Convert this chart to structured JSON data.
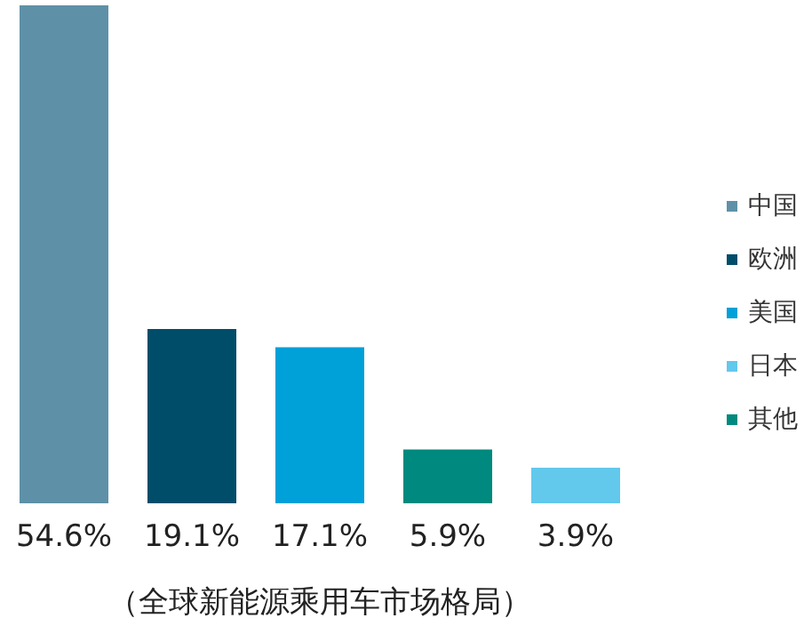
{
  "chart_data": {
    "type": "bar",
    "xlabel": "（全球新能源乘用车市场格局）",
    "categories": [
      null,
      null,
      null,
      null,
      null
    ],
    "stacked": true,
    "legend": "right",
    "data_labels": true,
    "series": [
      {
        "name": "中国",
        "color": "#5e91a8",
        "values": [
          54.6,
          null,
          null,
          null,
          null
        ],
        "value_labels": [
          "54.6%",
          null,
          null,
          null,
          null
        ]
      },
      {
        "name": "欧洲",
        "color": "#004d6a",
        "values": [
          null,
          19.1,
          null,
          null,
          null
        ],
        "value_labels": [
          null,
          "19.1%",
          null,
          null,
          null
        ]
      },
      {
        "name": "美国",
        "color": "#00a0d8",
        "values": [
          null,
          null,
          17.1,
          null,
          null
        ],
        "value_labels": [
          null,
          null,
          "17.1%",
          null,
          null
        ]
      },
      {
        "name": "日本",
        "color": "#62c8ec",
        "values": [
          null,
          null,
          null,
          null,
          3.9
        ],
        "value_labels": [
          null,
          null,
          null,
          null,
          "3.9%"
        ]
      },
      {
        "name": "其他",
        "color": "#00897e",
        "values": [
          null,
          null,
          null,
          5.9,
          null
        ],
        "value_labels": [
          null,
          null,
          null,
          "5.9%",
          null
        ]
      }
    ]
  }
}
